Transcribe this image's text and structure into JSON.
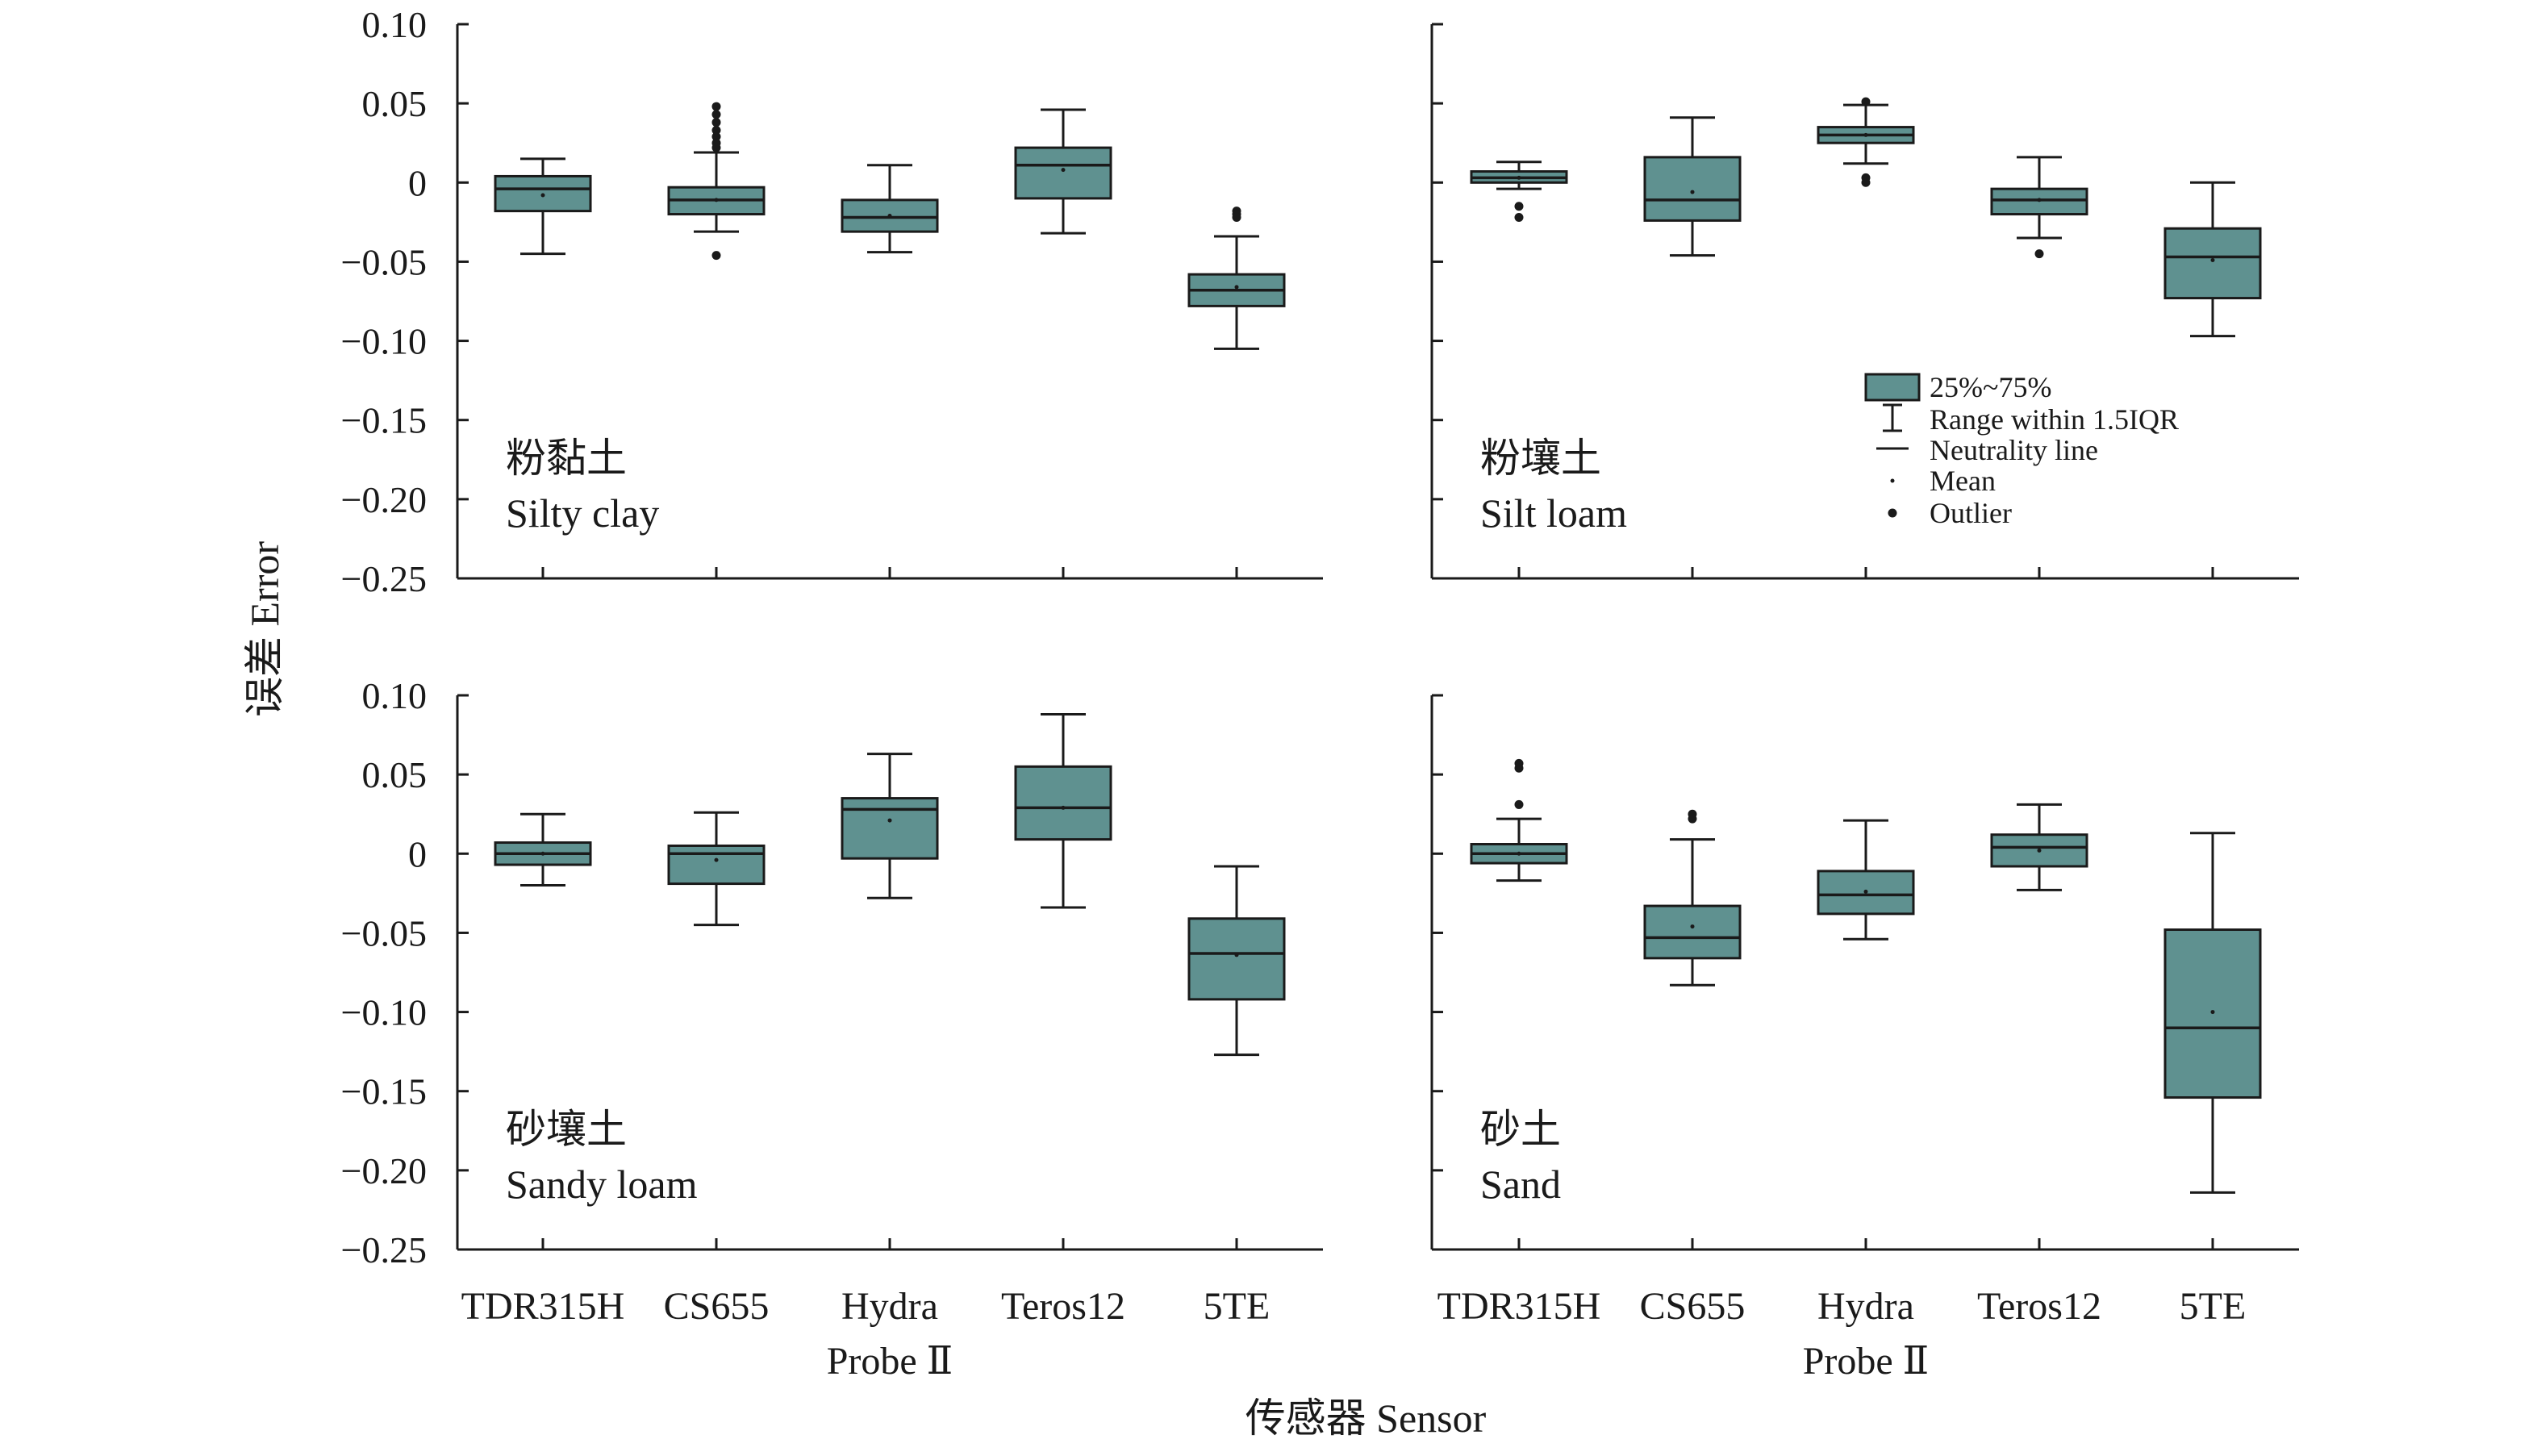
{
  "figure": {
    "xlabel": "传感器 Sensor",
    "ylabel": "误差 Error",
    "legend_position": "inside-top-right panel"
  },
  "legend": {
    "box": "25%~75%",
    "whisker": "Range within 1.5IQR",
    "median": "Neutrality line",
    "mean": "Mean",
    "outlier": "Outlier"
  },
  "colors": {
    "box_fill": "#5f9190",
    "line": "#1a1a1a"
  },
  "chart_data": [
    {
      "type": "box",
      "panel": "top-left",
      "label_cn": "粉黏土",
      "label_en": "Silty clay",
      "ylim": [
        -0.25,
        0.1
      ],
      "yticks": [
        "0.10",
        "0.05",
        "0",
        "−0.05",
        "−0.10",
        "−0.15",
        "−0.20",
        "−0.25"
      ],
      "categories": [
        [
          "TDR315H"
        ],
        [
          "CS655"
        ],
        [
          "Hydra",
          "Probe Ⅱ"
        ],
        [
          "Teros12"
        ],
        [
          "5TE"
        ]
      ],
      "boxes": [
        {
          "whisker_low": -0.045,
          "q1": -0.018,
          "median": -0.004,
          "q3": 0.004,
          "whisker_high": 0.015,
          "mean": -0.008,
          "outliers": []
        },
        {
          "whisker_low": -0.031,
          "q1": -0.02,
          "median": -0.011,
          "q3": -0.003,
          "whisker_high": 0.019,
          "mean": -0.011,
          "outliers": [
            -0.046,
            0.022,
            0.025,
            0.029,
            0.033,
            0.038,
            0.043,
            0.048
          ]
        },
        {
          "whisker_low": -0.044,
          "q1": -0.031,
          "median": -0.022,
          "q3": -0.011,
          "whisker_high": 0.011,
          "mean": -0.021,
          "outliers": []
        },
        {
          "whisker_low": -0.032,
          "q1": -0.01,
          "median": 0.011,
          "q3": 0.022,
          "whisker_high": 0.046,
          "mean": 0.008,
          "outliers": []
        },
        {
          "whisker_low": -0.105,
          "q1": -0.078,
          "median": -0.068,
          "q3": -0.058,
          "whisker_high": -0.034,
          "mean": -0.066,
          "outliers": [
            -0.018,
            -0.02,
            -0.022
          ]
        }
      ]
    },
    {
      "type": "box",
      "panel": "top-right",
      "label_cn": "粉壤土",
      "label_en": "Silt loam",
      "ylim": [
        -0.25,
        0.1
      ],
      "yticks": [],
      "categories": [
        [
          "TDR315H"
        ],
        [
          "CS655"
        ],
        [
          "Hydra",
          "Probe Ⅱ"
        ],
        [
          "Teros12"
        ],
        [
          "5TE"
        ]
      ],
      "boxes": [
        {
          "whisker_low": -0.004,
          "q1": 0.0,
          "median": 0.003,
          "q3": 0.007,
          "whisker_high": 0.013,
          "mean": 0.003,
          "outliers": [
            -0.015,
            -0.022
          ]
        },
        {
          "whisker_low": -0.046,
          "q1": -0.024,
          "median": -0.011,
          "q3": 0.016,
          "whisker_high": 0.041,
          "mean": -0.006,
          "outliers": []
        },
        {
          "whisker_low": 0.012,
          "q1": 0.025,
          "median": 0.03,
          "q3": 0.035,
          "whisker_high": 0.049,
          "mean": 0.03,
          "outliers": [
            0.051,
            0.003,
            0.0
          ]
        },
        {
          "whisker_low": -0.035,
          "q1": -0.02,
          "median": -0.011,
          "q3": -0.004,
          "whisker_high": 0.016,
          "mean": -0.011,
          "outliers": [
            -0.045
          ]
        },
        {
          "whisker_low": -0.097,
          "q1": -0.073,
          "median": -0.047,
          "q3": -0.029,
          "whisker_high": 0.0,
          "mean": -0.049,
          "outliers": []
        }
      ]
    },
    {
      "type": "box",
      "panel": "bottom-left",
      "label_cn": "砂壤土",
      "label_en": "Sandy loam",
      "ylim": [
        -0.25,
        0.1
      ],
      "yticks": [
        "0.10",
        "0.05",
        "0",
        "−0.05",
        "−0.10",
        "−0.15",
        "−0.20",
        "−0.25"
      ],
      "categories": [
        [
          "TDR315H"
        ],
        [
          "CS655"
        ],
        [
          "Hydra",
          "Probe Ⅱ"
        ],
        [
          "Teros12"
        ],
        [
          "5TE"
        ]
      ],
      "boxes": [
        {
          "whisker_low": -0.02,
          "q1": -0.007,
          "median": 0.0,
          "q3": 0.007,
          "whisker_high": 0.025,
          "mean": 0.0,
          "outliers": []
        },
        {
          "whisker_low": -0.045,
          "q1": -0.019,
          "median": 0.0,
          "q3": 0.005,
          "whisker_high": 0.026,
          "mean": -0.004,
          "outliers": []
        },
        {
          "whisker_low": -0.028,
          "q1": -0.003,
          "median": 0.028,
          "q3": 0.035,
          "whisker_high": 0.063,
          "mean": 0.021,
          "outliers": []
        },
        {
          "whisker_low": -0.034,
          "q1": 0.009,
          "median": 0.029,
          "q3": 0.055,
          "whisker_high": 0.088,
          "mean": 0.029,
          "outliers": []
        },
        {
          "whisker_low": -0.127,
          "q1": -0.092,
          "median": -0.063,
          "q3": -0.041,
          "whisker_high": -0.008,
          "mean": -0.064,
          "outliers": []
        }
      ]
    },
    {
      "type": "box",
      "panel": "bottom-right",
      "label_cn": "砂土",
      "label_en": "Sand",
      "ylim": [
        -0.25,
        0.1
      ],
      "yticks": [],
      "categories": [
        [
          "TDR315H"
        ],
        [
          "CS655"
        ],
        [
          "Hydra",
          "Probe Ⅱ"
        ],
        [
          "Teros12"
        ],
        [
          "5TE"
        ]
      ],
      "boxes": [
        {
          "whisker_low": -0.017,
          "q1": -0.006,
          "median": 0.0,
          "q3": 0.006,
          "whisker_high": 0.022,
          "mean": 0.0,
          "outliers": [
            0.031,
            0.054,
            0.057
          ]
        },
        {
          "whisker_low": -0.083,
          "q1": -0.066,
          "median": -0.053,
          "q3": -0.033,
          "whisker_high": 0.009,
          "mean": -0.046,
          "outliers": [
            0.022,
            0.025
          ]
        },
        {
          "whisker_low": -0.054,
          "q1": -0.038,
          "median": -0.026,
          "q3": -0.011,
          "whisker_high": 0.021,
          "mean": -0.024,
          "outliers": []
        },
        {
          "whisker_low": -0.023,
          "q1": -0.008,
          "median": 0.004,
          "q3": 0.012,
          "whisker_high": 0.031,
          "mean": 0.002,
          "outliers": []
        },
        {
          "whisker_low": -0.214,
          "q1": -0.154,
          "median": -0.11,
          "q3": -0.048,
          "whisker_high": 0.013,
          "mean": -0.1,
          "outliers": []
        }
      ]
    }
  ]
}
